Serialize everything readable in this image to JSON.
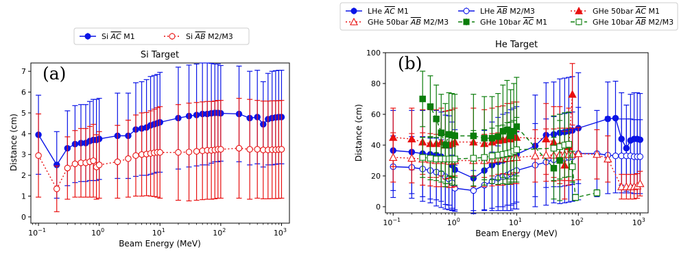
{
  "colors": {
    "blue": "#0a14e6",
    "red": "#e81010",
    "green": "#0b7d0b"
  },
  "chart_data": [
    {
      "type": "scatter",
      "title": "Si Target",
      "panel_label": "(a)",
      "xlabel": "Beam Energy (MeV)",
      "ylabel": "Distance (cm)",
      "xscale": "log",
      "xlim": [
        0.075,
        1350
      ],
      "ylim": [
        -0.3,
        7.4
      ],
      "xticks": [
        {
          "v": 0.1,
          "b": "10",
          "e": "−1"
        },
        {
          "v": 1,
          "b": "10",
          "e": "0"
        },
        {
          "v": 10,
          "b": "10",
          "e": "1"
        },
        {
          "v": 100,
          "b": "10",
          "e": "2"
        },
        {
          "v": 1000,
          "b": "10",
          "e": "3"
        }
      ],
      "yticks": [
        {
          "v": 0,
          "l": "0"
        },
        {
          "v": 1,
          "l": "1"
        },
        {
          "v": 2,
          "l": "2"
        },
        {
          "v": 3,
          "l": "3"
        },
        {
          "v": 4,
          "l": "4"
        },
        {
          "v": 5,
          "l": "5"
        },
        {
          "v": 6,
          "l": "6"
        },
        {
          "v": 7,
          "l": "7"
        }
      ],
      "legend": {
        "placement": "top-center",
        "columns": 2
      },
      "series": [
        {
          "name": "Si AC M1",
          "name_prefix": "Si ",
          "name_over": "AC",
          "name_suffix": " M1",
          "color": "blue",
          "marker": "circle",
          "fill": "solid",
          "line": "solid",
          "x": [
            0.1,
            0.2,
            0.3,
            0.4,
            0.5,
            0.6,
            0.7,
            0.8,
            0.9,
            1,
            2,
            3,
            4,
            5,
            6,
            7,
            8,
            9,
            10,
            20,
            30,
            40,
            50,
            60,
            70,
            80,
            90,
            100,
            200,
            300,
            400,
            500,
            600,
            700,
            800,
            900,
            1000
          ],
          "y": [
            3.95,
            2.5,
            3.3,
            3.5,
            3.55,
            3.55,
            3.65,
            3.7,
            3.7,
            3.75,
            3.9,
            3.9,
            4.2,
            4.25,
            4.3,
            4.4,
            4.45,
            4.5,
            4.55,
            4.75,
            4.85,
            4.9,
            4.95,
            4.95,
            4.98,
            5.0,
            5.0,
            4.98,
            4.95,
            4.75,
            4.8,
            4.45,
            4.7,
            4.75,
            4.78,
            4.8,
            4.8
          ],
          "yerr": [
            1.9,
            1.6,
            1.8,
            1.85,
            1.85,
            1.85,
            1.9,
            1.95,
            1.95,
            1.95,
            2.05,
            2.05,
            2.25,
            2.25,
            2.3,
            2.35,
            2.35,
            2.35,
            2.4,
            2.45,
            2.45,
            2.45,
            2.45,
            2.45,
            2.4,
            2.35,
            2.35,
            2.3,
            2.3,
            2.25,
            2.25,
            2.05,
            2.2,
            2.25,
            2.25,
            2.25,
            2.25
          ]
        },
        {
          "name": "Si AB M2/M3",
          "name_prefix": "Si ",
          "name_over": "AB",
          "name_suffix": " M2/M3",
          "color": "red",
          "marker": "circle",
          "fill": "open",
          "line": "dotted",
          "x": [
            0.1,
            0.2,
            0.3,
            0.4,
            0.5,
            0.6,
            0.7,
            0.8,
            0.9,
            1,
            2,
            3,
            4,
            5,
            6,
            7,
            8,
            9,
            10,
            20,
            30,
            40,
            50,
            60,
            70,
            80,
            90,
            100,
            200,
            300,
            400,
            500,
            600,
            700,
            800,
            900,
            1000
          ],
          "y": [
            2.95,
            1.35,
            2.35,
            2.55,
            2.6,
            2.6,
            2.65,
            2.7,
            2.4,
            2.5,
            2.65,
            2.8,
            2.95,
            3.0,
            3.02,
            3.05,
            3.08,
            3.1,
            3.1,
            3.1,
            3.12,
            3.15,
            3.18,
            3.2,
            3.2,
            3.22,
            3.25,
            3.25,
            3.3,
            3.25,
            3.25,
            3.22,
            3.22,
            3.23,
            3.23,
            3.24,
            3.25
          ],
          "yerr": [
            2.0,
            1.1,
            1.5,
            1.6,
            1.65,
            1.65,
            1.7,
            1.75,
            1.55,
            1.6,
            1.75,
            1.85,
            1.95,
            2.0,
            2.0,
            2.05,
            2.1,
            2.15,
            2.2,
            2.3,
            2.35,
            2.35,
            2.35,
            2.35,
            2.35,
            2.35,
            2.35,
            2.35,
            2.4,
            2.4,
            2.35,
            2.35,
            2.35,
            2.35,
            2.35,
            2.35,
            2.35
          ]
        }
      ]
    },
    {
      "type": "scatter",
      "title": "He Target",
      "panel_label": "(b)",
      "xlabel": "Beam Energy (MeV)",
      "ylabel": "Distance (cm)",
      "xscale": "log",
      "xlim": [
        0.075,
        1350
      ],
      "ylim": [
        -4,
        100
      ],
      "xticks": [
        {
          "v": 0.1,
          "b": "10",
          "e": "−1"
        },
        {
          "v": 1,
          "b": "10",
          "e": "0"
        },
        {
          "v": 10,
          "b": "10",
          "e": "1"
        },
        {
          "v": 100,
          "b": "10",
          "e": "2"
        },
        {
          "v": 1000,
          "b": "10",
          "e": "3"
        }
      ],
      "yticks": [
        {
          "v": 0,
          "l": "0"
        },
        {
          "v": 20,
          "l": "20"
        },
        {
          "v": 40,
          "l": "40"
        },
        {
          "v": 60,
          "l": "60"
        },
        {
          "v": 80,
          "l": "80"
        },
        {
          "v": 100,
          "l": "100"
        }
      ],
      "legend": {
        "placement": "above-plot",
        "columns": 3
      },
      "series": [
        {
          "name": "LHe AC M1",
          "name_prefix": "LHe ",
          "name_over": "AC",
          "name_suffix": " M1",
          "color": "blue",
          "marker": "circle",
          "fill": "solid",
          "line": "solid",
          "x": [
            0.1,
            0.2,
            0.3,
            0.4,
            0.5,
            0.6,
            0.7,
            0.8,
            0.9,
            1,
            2,
            3,
            4,
            5,
            6,
            7,
            8,
            9,
            10,
            20,
            30,
            40,
            50,
            60,
            70,
            80,
            100,
            300,
            400,
            500,
            600,
            700,
            800,
            900,
            1000
          ],
          "y": [
            36.5,
            35.5,
            34.5,
            34,
            33.5,
            32.5,
            30.5,
            30,
            27,
            24,
            18.5,
            23.5,
            27,
            29,
            30,
            31,
            32,
            33,
            34,
            39.5,
            46.5,
            47,
            48,
            48.5,
            49,
            49.5,
            51,
            57,
            57.5,
            44,
            38,
            43,
            44,
            44,
            43.5
          ],
          "yerr": [
            26,
            27,
            28,
            29,
            29,
            29,
            29,
            29,
            28,
            26,
            23,
            26,
            28,
            29,
            30,
            30,
            31,
            31,
            31,
            33,
            34,
            34,
            35,
            35,
            35,
            35,
            36,
            24,
            24,
            30,
            28,
            30,
            30,
            30,
            30
          ]
        },
        {
          "name": "LHe AB M2/M3",
          "name_prefix": "LHe ",
          "name_over": "AB",
          "name_suffix": " M2/M3",
          "color": "blue",
          "marker": "circle",
          "fill": "open",
          "line": "solid",
          "x": [
            0.1,
            0.2,
            0.3,
            0.4,
            0.5,
            0.6,
            0.7,
            0.8,
            0.9,
            1,
            2,
            3,
            4,
            5,
            6,
            7,
            8,
            9,
            10,
            20,
            30,
            40,
            50,
            60,
            70,
            80,
            100,
            200,
            300,
            400,
            500,
            600,
            700,
            800,
            900,
            1000
          ],
          "y": [
            26,
            25.5,
            24.5,
            23.5,
            22.5,
            21.5,
            19.5,
            18,
            15.5,
            12,
            10.5,
            14,
            16.5,
            18.5,
            19.5,
            20.5,
            21.5,
            22.5,
            23.5,
            27,
            29,
            30.5,
            31,
            31.5,
            32,
            32.5,
            34.5,
            34.5,
            33.5,
            33,
            33,
            33,
            33,
            32.5,
            32.5,
            32.5
          ],
          "yerr": [
            20,
            20,
            21,
            21,
            22,
            22,
            21,
            20,
            18,
            15,
            13,
            16,
            19,
            21,
            22,
            23,
            24,
            24,
            25,
            27,
            28,
            28,
            29,
            29,
            29,
            29,
            30,
            28,
            25,
            24,
            24,
            24,
            24,
            24,
            24,
            24
          ]
        },
        {
          "name": "GHe 50bar AC M1",
          "name_prefix": "GHe 50bar ",
          "name_over": "AC",
          "name_suffix": " M1",
          "color": "red",
          "marker": "triangle",
          "fill": "solid",
          "line": "dotted",
          "x": [
            0.1,
            0.2,
            0.3,
            0.4,
            0.5,
            0.6,
            0.7,
            0.8,
            0.9,
            1,
            2,
            3,
            4,
            5,
            6,
            7,
            8,
            9,
            10,
            30,
            40,
            50,
            60,
            70,
            80
          ],
          "y": [
            45,
            44,
            42,
            41,
            41,
            42,
            40,
            40.5,
            41,
            42,
            42,
            41,
            42,
            43,
            43.5,
            44,
            44,
            45,
            45,
            44,
            42,
            40,
            27,
            39,
            73
          ],
          "yerr": [
            19,
            20,
            21,
            22,
            22,
            22,
            22,
            22,
            22,
            22,
            22,
            22,
            22,
            22,
            22,
            23,
            23,
            23,
            23,
            23,
            23,
            25,
            22,
            25,
            20
          ]
        },
        {
          "name": "GHe 50bar AB M2/M3",
          "name_prefix": "GHe 50bar ",
          "name_over": "AB",
          "name_suffix": " M2/M3",
          "color": "red",
          "marker": "triangle",
          "fill": "open",
          "line": "dotted",
          "x": [
            0.1,
            0.2,
            0.3,
            0.4,
            0.5,
            0.6,
            0.7,
            0.8,
            0.9,
            1,
            2,
            3,
            4,
            5,
            6,
            7,
            8,
            9,
            10,
            20,
            30,
            40,
            50,
            60,
            70,
            80,
            100,
            200,
            300,
            500,
            600,
            700,
            800,
            900,
            1000
          ],
          "y": [
            32,
            31.5,
            31,
            30.5,
            30,
            30,
            30,
            29.5,
            29.5,
            30,
            30,
            30,
            30.5,
            31,
            31,
            31.5,
            31.5,
            32,
            32,
            33,
            33.5,
            33.5,
            34,
            34,
            34,
            34,
            34.5,
            34,
            31,
            13,
            13,
            13,
            13,
            13.5,
            15
          ],
          "yerr": [
            16,
            16,
            17,
            17,
            17,
            17,
            17,
            17,
            17,
            17,
            17,
            17,
            17,
            17,
            17,
            17,
            17,
            17,
            17,
            17,
            17,
            17,
            17,
            17,
            17,
            17,
            17,
            16,
            15,
            8,
            8,
            8,
            8,
            8,
            8
          ]
        },
        {
          "name": "GHe 10bar AC M1",
          "name_prefix": "GHe 10bar ",
          "name_over": "AC",
          "name_suffix": " M1",
          "color": "green",
          "marker": "square",
          "fill": "solid",
          "line": "dashed",
          "x": [
            0.3,
            0.4,
            0.5,
            0.6,
            0.7,
            0.8,
            0.9,
            1,
            2,
            3,
            4,
            5,
            6,
            7,
            8,
            9,
            10,
            40,
            50
          ],
          "y": [
            70,
            65,
            57,
            48,
            40,
            47,
            46.5,
            46,
            46,
            44.5,
            44.5,
            45.5,
            49,
            50,
            46,
            49,
            52,
            25,
            30
          ],
          "yerr": [
            18,
            20,
            22,
            25,
            27,
            27,
            27,
            27,
            27,
            27,
            27,
            28,
            30,
            32,
            30,
            31,
            32,
            20,
            26
          ]
        },
        {
          "name": "GHe 10bar AB M2/M3",
          "name_prefix": "GHe 10bar ",
          "name_over": "AB",
          "name_suffix": " M2/M3",
          "color": "green",
          "marker": "square",
          "fill": "open",
          "line": "dashed",
          "x": [
            0.3,
            0.4,
            0.5,
            0.6,
            0.7,
            0.8,
            0.9,
            1,
            2,
            3,
            4,
            5,
            6,
            7,
            8,
            9,
            10,
            40,
            50,
            60,
            70,
            80,
            90,
            200
          ],
          "y": [
            32,
            31.5,
            31,
            31,
            31,
            31,
            31,
            31,
            31.5,
            32,
            33,
            33.5,
            34,
            34.5,
            35,
            36,
            37,
            38,
            39,
            40,
            40.5,
            26,
            6,
            9
          ],
          "yerr": [
            13,
            14,
            14,
            15,
            16,
            16,
            17,
            17,
            18,
            18,
            18,
            19,
            19,
            20,
            20,
            20,
            21,
            21,
            21,
            21,
            21,
            10,
            2,
            2
          ]
        }
      ]
    }
  ]
}
